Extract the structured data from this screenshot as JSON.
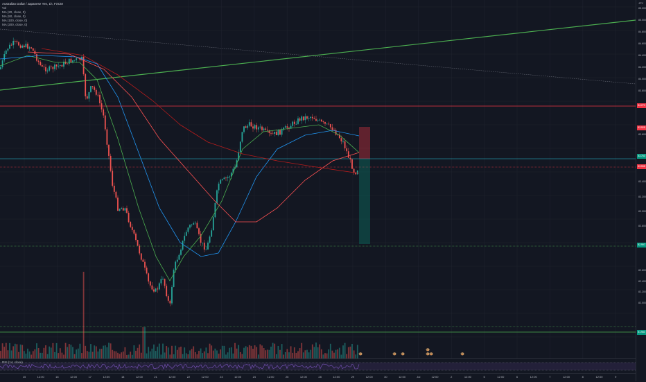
{
  "header": {
    "title": "Australian Dollar / Japanese Yen, 1h, FXCM",
    "volume_label": "Vol",
    "ma_labels": [
      "MA (20, close, 0)",
      "MA (50, close, 0)",
      "MA (100, close, 0)",
      "MA (200, close, 0)"
    ]
  },
  "price_axis": {
    "currency": "JPY",
    "ticks": [
      "85.200",
      "85.000",
      "84.800",
      "84.600",
      "84.400",
      "84.200",
      "84.000",
      "83.800",
      "83.600",
      "83.400",
      "83.200",
      "83.000",
      "82.800",
      "82.600",
      "82.400",
      "82.200",
      "82.000"
    ],
    "badges": {
      "resistance": "84.270",
      "target_red": "83.925",
      "current": "83.753",
      "last": "83.598",
      "stop_green": "82.997",
      "support": "81.960"
    }
  },
  "time_axis": {
    "labels": [
      "15",
      "12:00",
      "16",
      "12:00",
      "17",
      "12:00",
      "18",
      "12:00",
      "21",
      "12:00",
      "22",
      "12:00",
      "23",
      "12:00",
      "24",
      "12:00",
      "25",
      "12:00",
      "28",
      "12:00",
      "29",
      "12:00",
      "30",
      "12:00",
      "Jul",
      "12:00",
      "2",
      "12:00",
      "5",
      "12:00",
      "6",
      "12:00",
      "7",
      "12:00",
      "8",
      "12:00",
      "9"
    ]
  },
  "rsi": {
    "label": "RSI (14, close)"
  },
  "colors": {
    "background": "#131722",
    "up": "#26a69a",
    "down": "#ef5350",
    "ma20": "#4caf50",
    "ma50": "#2196f3",
    "ma100": "#ff5252",
    "ma200": "#b71c1c",
    "trendline": "#4caf50",
    "rsi": "#7e57c2"
  },
  "icons": [
    "earnings-event-icon"
  ]
}
